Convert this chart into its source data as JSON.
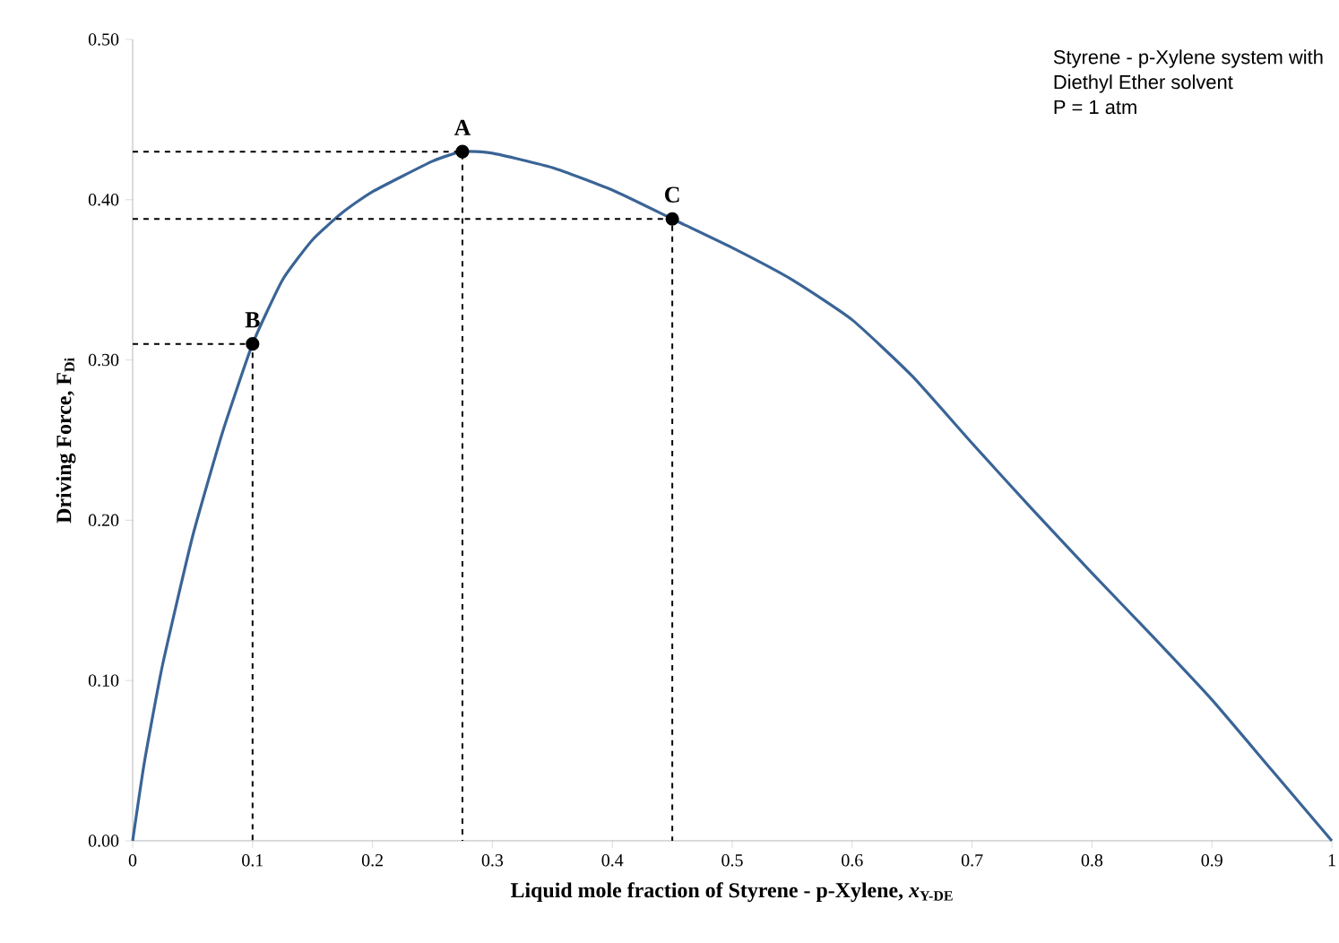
{
  "chart_data": {
    "type": "line",
    "xlabel": "Liquid mole fraction of Styrene - p-Xylene, *x*$_{Y-DE}$",
    "ylabel": "Driving Force, F$_{Di}$",
    "series": [
      {
        "type": "line",
        "color": "#3a6496",
        "x": [
          0,
          0.01,
          0.025,
          0.05,
          0.075,
          0.1,
          0.125,
          0.15,
          0.175,
          0.2,
          0.25,
          0.275,
          0.3,
          0.35,
          0.4,
          0.45,
          0.5,
          0.55,
          0.6,
          0.65,
          0.7,
          0.75,
          0.8,
          0.85,
          0.9,
          0.95,
          1
        ],
        "values": [
          0,
          0.05,
          0.11,
          0.19,
          0.255,
          0.31,
          0.35,
          0.375,
          0.392,
          0.405,
          0.424,
          0.43,
          0.429,
          0.42,
          0.406,
          0.388,
          0.37,
          0.35,
          0.325,
          0.29,
          0.248,
          0.207,
          0.167,
          0.128,
          0.088,
          0.044,
          0
        ]
      },
      {
        "color": "#000000",
        "line_style": "dashed",
        "x": [
          0,
          0.275,
          0.275
        ],
        "values": [
          0.43,
          0.43,
          0
        ]
      },
      {
        "color": "#000000",
        "line_style": "dashed",
        "x": [
          0,
          0.1,
          0.1
        ],
        "values": [
          0.31,
          0.31,
          0
        ]
      },
      {
        "color": "#000000",
        "line_style": "dashed",
        "x": [
          0,
          0.45,
          0.45
        ],
        "values": [
          0.388,
          0.388,
          0
        ]
      },
      {
        "type": "scatter",
        "color": "#000000",
        "marker": "circle",
        "x": [
          0.1,
          0.275,
          0.45
        ],
        "values": [
          0.31,
          0.43,
          0.388
        ]
      }
    ],
    "annotations": [
      {
        "text": "A",
        "x": 0.275,
        "y": 0.43
      },
      {
        "text": "B",
        "x": 0.1,
        "y": 0.31
      },
      {
        "text": "C",
        "x": 0.45,
        "y": 0.388
      },
      "Styrene - p-Xylene system with",
      "Diethyl Ether solvent",
      "P = 1 atm"
    ],
    "xlim": [
      0,
      1
    ],
    "ylim": [
      0,
      0.5
    ],
    "xticks": [
      0,
      0.1,
      0.2,
      0.3,
      0.4,
      0.5,
      0.6,
      0.7,
      0.8,
      0.9,
      1
    ],
    "yticks": [
      {
        "value": 0,
        "label": "0.00"
      },
      {
        "value": 0.1,
        "label": "0.10"
      },
      {
        "value": 0.2,
        "label": "0.20"
      },
      {
        "value": 0.3,
        "label": "0.30"
      },
      {
        "value": 0.4,
        "label": "0.40"
      },
      {
        "value": 0.5,
        "label": "0.50"
      }
    ],
    "grid": false
  }
}
